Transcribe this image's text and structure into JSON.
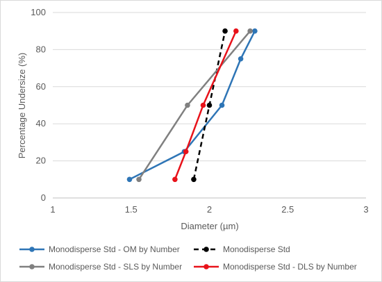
{
  "chart_data": {
    "type": "scatter",
    "title": "",
    "xlabel": "Diameter (µm)",
    "ylabel": "Percentage Undersize (%)",
    "xlim": [
      1,
      3
    ],
    "ylim": [
      0,
      100
    ],
    "x_ticks": [
      "1",
      "1.5",
      "2",
      "2.5",
      "3"
    ],
    "y_ticks": [
      "0",
      "20",
      "40",
      "60",
      "80",
      "100"
    ],
    "grid": "horizontal",
    "legend_position": "bottom",
    "series": [
      {
        "name": "Monodisperse Std - OM by Number",
        "color": "#2e75b6",
        "dash": "solid",
        "points": [
          [
            1.49,
            10
          ],
          [
            1.84,
            25
          ],
          [
            2.08,
            50
          ],
          [
            2.2,
            75
          ],
          [
            2.29,
            90
          ]
        ]
      },
      {
        "name": "Monodisperse Std",
        "color": "#000000",
        "dash": "dashed",
        "points": [
          [
            1.9,
            10
          ],
          [
            2.0,
            50
          ],
          [
            2.1,
            90
          ]
        ]
      },
      {
        "name": "Monodisperse Std - SLS by Number",
        "color": "#808080",
        "dash": "solid",
        "points": [
          [
            1.55,
            10
          ],
          [
            1.86,
            50
          ],
          [
            2.26,
            90
          ]
        ]
      },
      {
        "name": "Monodisperse Std - DLS by Number",
        "color": "#e8121a",
        "dash": "solid",
        "points": [
          [
            1.78,
            10
          ],
          [
            1.85,
            25
          ],
          [
            1.96,
            50
          ],
          [
            2.17,
            90
          ]
        ]
      }
    ]
  }
}
